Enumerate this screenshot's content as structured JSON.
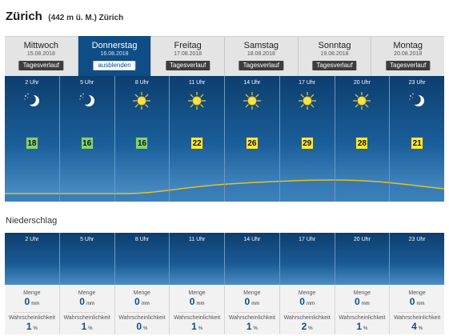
{
  "header": {
    "city": "Zürich",
    "subtitle": "(442 m ü. M.) Zürich"
  },
  "tabs": [
    {
      "day": "Mittwoch",
      "date": "15.08.2018",
      "button": "Tagesverlauf",
      "active": false
    },
    {
      "day": "Donnerstag",
      "date": "16.08.2018",
      "button": "ausblenden",
      "active": true
    },
    {
      "day": "Freitag",
      "date": "17.08.2018",
      "button": "Tagesverlauf",
      "active": false
    },
    {
      "day": "Samstag",
      "date": "18.08.2018",
      "button": "Tagesverlauf",
      "active": false
    },
    {
      "day": "Sonntag",
      "date": "19.08.2018",
      "button": "Tagesverlauf",
      "active": false
    },
    {
      "day": "Montag",
      "date": "20.08.2018",
      "button": "Tagesverlauf",
      "active": false
    }
  ],
  "hourly": [
    {
      "hour": "2 Uhr",
      "icon": "moon-stars-icon",
      "temp": "18",
      "temp_color": "green"
    },
    {
      "hour": "5 Uhr",
      "icon": "moon-stars-icon",
      "temp": "16",
      "temp_color": "green"
    },
    {
      "hour": "8 Uhr",
      "icon": "sun-icon",
      "temp": "16",
      "temp_color": "green"
    },
    {
      "hour": "11 Uhr",
      "icon": "sun-icon",
      "temp": "22",
      "temp_color": "yellow"
    },
    {
      "hour": "14 Uhr",
      "icon": "sun-icon",
      "temp": "26",
      "temp_color": "yellow"
    },
    {
      "hour": "17 Uhr",
      "icon": "sun-icon",
      "temp": "29",
      "temp_color": "yellow"
    },
    {
      "hour": "20 Uhr",
      "icon": "sun-icon",
      "temp": "28",
      "temp_color": "yellow"
    },
    {
      "hour": "23 Uhr",
      "icon": "moon-stars-icon",
      "temp": "21",
      "temp_color": "yellow"
    }
  ],
  "precipitation": {
    "title": "Niederschlag",
    "amount_label": "Menge",
    "prob_label": "Wahrscheinlichkeit",
    "amount_unit": "mm",
    "prob_unit": "%",
    "hours": [
      {
        "hour": "2 Uhr",
        "amount": "0",
        "prob": "1"
      },
      {
        "hour": "5 Uhr",
        "amount": "0",
        "prob": "1"
      },
      {
        "hour": "8 Uhr",
        "amount": "0",
        "prob": "0"
      },
      {
        "hour": "11 Uhr",
        "amount": "0",
        "prob": "1"
      },
      {
        "hour": "14 Uhr",
        "amount": "0",
        "prob": "1"
      },
      {
        "hour": "17 Uhr",
        "amount": "0",
        "prob": "2"
      },
      {
        "hour": "20 Uhr",
        "amount": "0",
        "prob": "1"
      },
      {
        "hour": "23 Uhr",
        "amount": "0",
        "prob": "4"
      }
    ]
  },
  "colors": {
    "panel_dark": "#0d3e6e",
    "panel_light": "#4f93c9",
    "active_tab": "#0f4d86",
    "temp_green": "#7ed37a",
    "temp_yellow": "#f6e93a",
    "curve": "#e6c020"
  }
}
